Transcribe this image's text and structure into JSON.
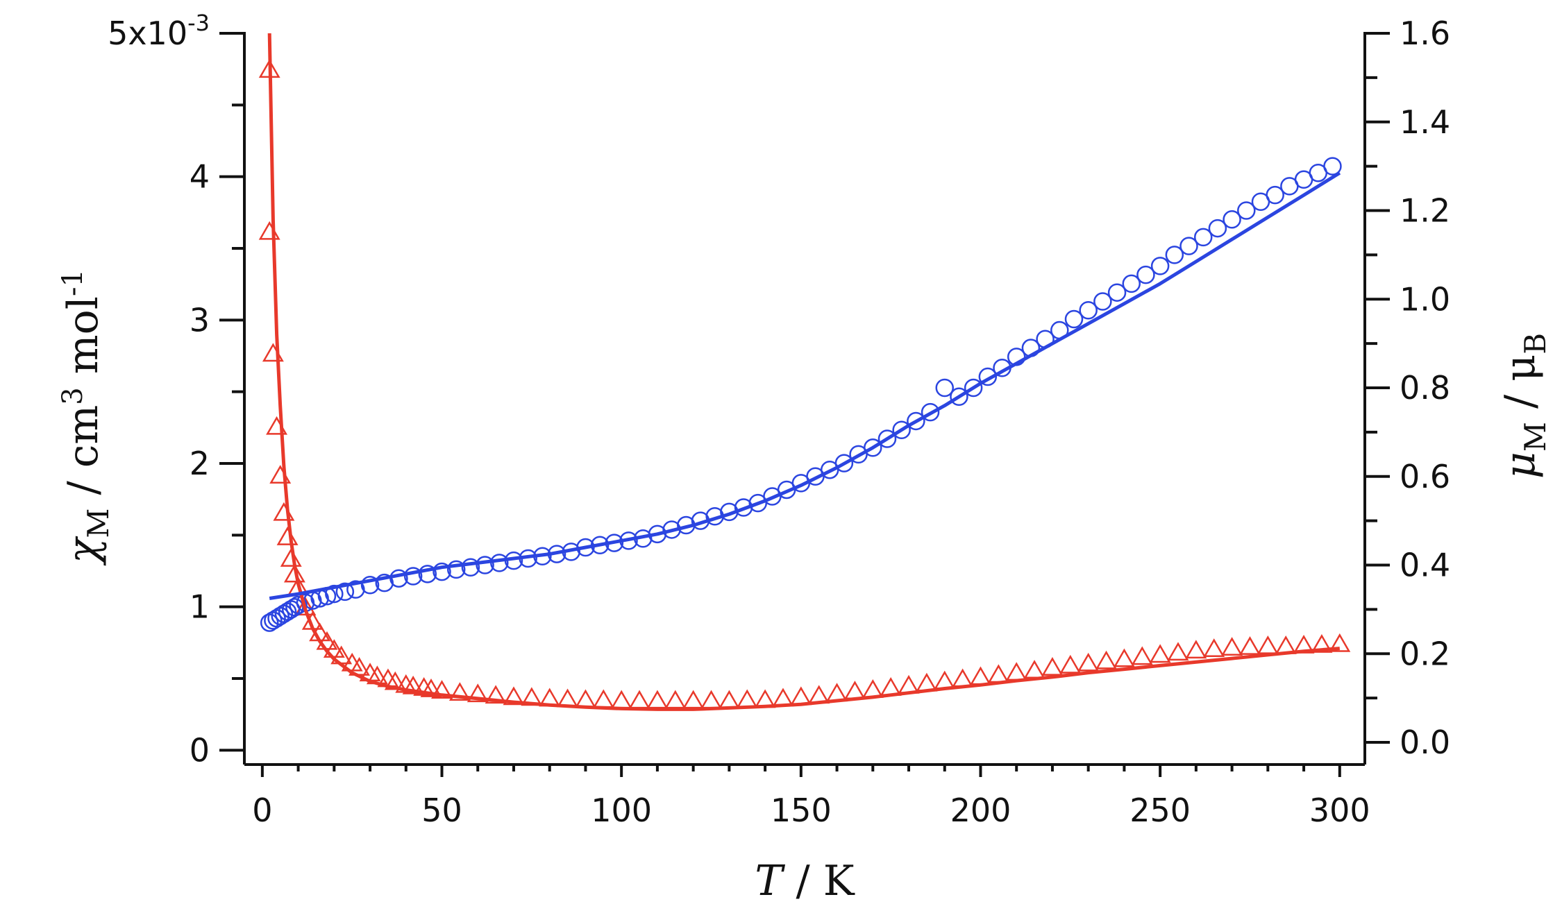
{
  "chart_data": {
    "type": "scatter",
    "x_axis": {
      "label_italic": "T",
      "label_rest": " / K",
      "range": [
        -5,
        307
      ],
      "ticks": [
        0,
        50,
        100,
        150,
        200,
        250,
        300
      ],
      "tick_labels": [
        "0",
        "50",
        "100",
        "150",
        "200",
        "250",
        "300"
      ]
    },
    "y_left": {
      "symbol": "χ",
      "subscript": "M",
      "unit_parts": [
        " / cm",
        "3",
        " mol",
        "-1"
      ],
      "range": [
        -0.0001,
        0.005
      ],
      "ticks": [
        0,
        0.001,
        0.002,
        0.003,
        0.004,
        0.005
      ],
      "tick_labels": [
        "0",
        "1",
        "2",
        "3",
        "4",
        ""
      ],
      "top_label_base": "5x10",
      "top_label_exp": "-3"
    },
    "y_right": {
      "symbol": "μ",
      "subscript": "M",
      "rest": " / μ",
      "rest_subscript": "B",
      "range": [
        -0.05,
        1.6
      ],
      "ticks": [
        0,
        0.2,
        0.4,
        0.6,
        0.8,
        1.0,
        1.2,
        1.4,
        1.6
      ],
      "tick_labels": [
        "0.0",
        "0.2",
        "0.4",
        "0.6",
        "0.8",
        "1.0",
        "1.2",
        "1.4",
        "1.6"
      ]
    },
    "series": [
      {
        "axis": "left",
        "marker": "triangle",
        "color": "#e8392b",
        "x": [
          2,
          2,
          3,
          4,
          5,
          6,
          7,
          8,
          9,
          10,
          12,
          14,
          16,
          18,
          20,
          22,
          25,
          27,
          30,
          32,
          35,
          37,
          40,
          42,
          45,
          47,
          50,
          55,
          60,
          65,
          70,
          75,
          80,
          85,
          90,
          95,
          100,
          105,
          110,
          115,
          120,
          125,
          130,
          135,
          140,
          145,
          150,
          155,
          160,
          165,
          170,
          175,
          180,
          185,
          190,
          195,
          200,
          205,
          210,
          215,
          220,
          225,
          230,
          235,
          240,
          245,
          250,
          255,
          260,
          265,
          270,
          275,
          280,
          285,
          290,
          295,
          300
        ],
        "y": [
          0.00474,
          0.00361,
          0.00276,
          0.00225,
          0.00191,
          0.00165,
          0.00148,
          0.00133,
          0.00122,
          0.00113,
          0.00099,
          0.00089,
          0.00081,
          0.00075,
          0.000695,
          0.00065,
          0.0006,
          0.00057,
          0.00053,
          0.00051,
          0.00049,
          0.00047,
          0.00045,
          0.00044,
          0.00043,
          0.00042,
          0.00041,
          0.000395,
          0.000385,
          0.000375,
          0.000365,
          0.00036,
          0.000355,
          0.00035,
          0.000345,
          0.000345,
          0.00034,
          0.00034,
          0.00034,
          0.00034,
          0.00034,
          0.00034,
          0.00034,
          0.000345,
          0.000345,
          0.000355,
          0.000365,
          0.000375,
          0.00039,
          0.000405,
          0.000415,
          0.00043,
          0.000445,
          0.00046,
          0.000475,
          0.00049,
          0.000505,
          0.00052,
          0.000535,
          0.00055,
          0.00057,
          0.000585,
          0.0006,
          0.000615,
          0.00063,
          0.000645,
          0.00066,
          0.000675,
          0.00069,
          0.0007,
          0.00071,
          0.000715,
          0.00072,
          0.00072,
          0.000725,
          0.00073,
          0.000735
        ]
      },
      {
        "axis": "right",
        "marker": "circle",
        "color": "#2b45e0",
        "x": [
          2,
          3,
          4,
          5,
          6,
          7,
          8,
          9,
          10,
          12,
          14,
          16,
          18,
          20,
          23,
          26,
          30,
          34,
          38,
          42,
          46,
          50,
          54,
          58,
          62,
          66,
          70,
          74,
          78,
          82,
          86,
          90,
          94,
          98,
          102,
          106,
          110,
          114,
          118,
          122,
          126,
          130,
          134,
          138,
          142,
          146,
          150,
          154,
          158,
          162,
          166,
          170,
          174,
          178,
          182,
          186,
          190,
          194,
          198,
          202,
          206,
          210,
          214,
          218,
          222,
          226,
          230,
          234,
          238,
          242,
          246,
          250,
          254,
          258,
          262,
          266,
          270,
          274,
          278,
          282,
          286,
          290,
          294,
          298
        ],
        "y": [
          0.27,
          0.275,
          0.28,
          0.285,
          0.29,
          0.295,
          0.3,
          0.305,
          0.31,
          0.315,
          0.32,
          0.325,
          0.33,
          0.335,
          0.34,
          0.345,
          0.355,
          0.36,
          0.37,
          0.375,
          0.38,
          0.385,
          0.39,
          0.395,
          0.4,
          0.405,
          0.41,
          0.415,
          0.42,
          0.425,
          0.43,
          0.44,
          0.445,
          0.45,
          0.455,
          0.46,
          0.47,
          0.48,
          0.49,
          0.5,
          0.51,
          0.52,
          0.53,
          0.54,
          0.555,
          0.57,
          0.585,
          0.6,
          0.615,
          0.63,
          0.65,
          0.665,
          0.685,
          0.705,
          0.725,
          0.745,
          0.8,
          0.78,
          0.8,
          0.825,
          0.845,
          0.87,
          0.89,
          0.91,
          0.93,
          0.955,
          0.975,
          0.995,
          1.015,
          1.035,
          1.055,
          1.075,
          1.1,
          1.12,
          1.14,
          1.16,
          1.18,
          1.2,
          1.22,
          1.235,
          1.255,
          1.27,
          1.285,
          1.3
        ]
      },
      {
        "axis": "left",
        "marker": "line",
        "color": "#e8392b",
        "x": [
          2,
          3,
          4,
          5,
          6,
          7,
          8,
          9,
          10,
          12,
          14,
          16,
          18,
          20,
          25,
          30,
          35,
          40,
          50,
          60,
          70,
          80,
          90,
          100,
          110,
          120,
          130,
          140,
          150,
          160,
          170,
          180,
          190,
          200,
          210,
          220,
          230,
          240,
          250,
          260,
          270,
          280,
          290,
          300
        ],
        "y": [
          0.005,
          0.0037,
          0.0029,
          0.0024,
          0.00198,
          0.00168,
          0.00146,
          0.00129,
          0.00116,
          0.00098,
          0.00085,
          0.00076,
          0.00069,
          0.000635,
          0.00054,
          0.00048,
          0.000445,
          0.00042,
          0.000385,
          0.00036,
          0.000335,
          0.000315,
          0.0003,
          0.00029,
          0.000285,
          0.000285,
          0.000295,
          0.000305,
          0.00032,
          0.000345,
          0.00037,
          0.0004,
          0.00043,
          0.000455,
          0.000485,
          0.00051,
          0.00054,
          0.000565,
          0.00059,
          0.000615,
          0.00064,
          0.000665,
          0.00069,
          0.00071
        ]
      },
      {
        "axis": "right",
        "marker": "line",
        "color": "#2b45e0",
        "x": [
          2,
          10,
          20,
          30,
          40,
          50,
          60,
          70,
          80,
          90,
          100,
          110,
          120,
          130,
          140,
          150,
          160,
          170,
          180,
          190,
          200,
          210,
          220,
          230,
          240,
          250,
          260,
          270,
          280,
          290,
          300
        ],
        "y": [
          0.325,
          0.335,
          0.35,
          0.365,
          0.38,
          0.395,
          0.405,
          0.415,
          0.425,
          0.44,
          0.455,
          0.47,
          0.49,
          0.515,
          0.545,
          0.58,
          0.62,
          0.665,
          0.715,
          0.76,
          0.81,
          0.855,
          0.9,
          0.945,
          0.99,
          1.035,
          1.085,
          1.135,
          1.185,
          1.235,
          1.285
        ]
      }
    ]
  }
}
